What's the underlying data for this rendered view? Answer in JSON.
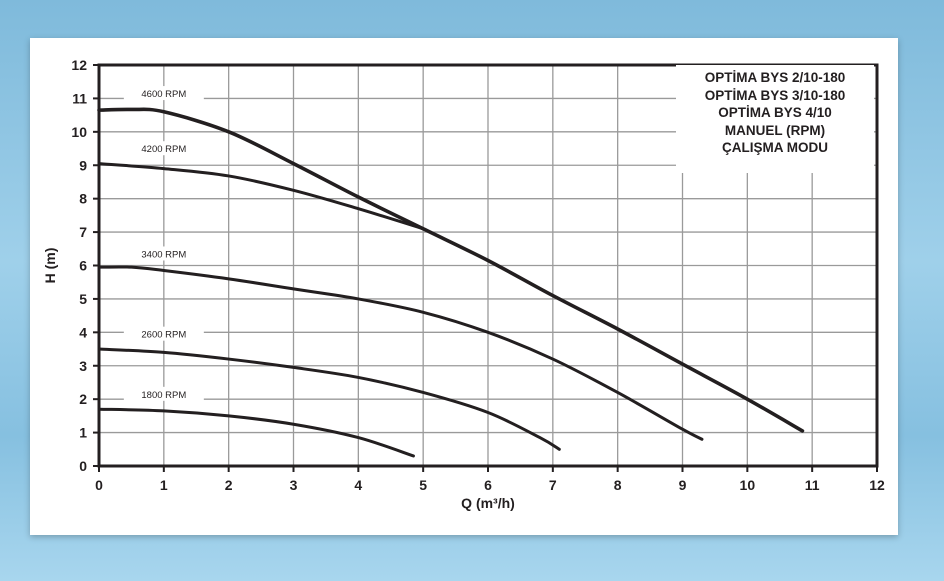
{
  "chart_data": {
    "type": "line",
    "title": "",
    "xlabel": "Q (m³/h)",
    "ylabel": "H (m)",
    "xlim": [
      0,
      12
    ],
    "ylim": [
      0,
      12
    ],
    "xticks": [
      "0",
      "1",
      "2",
      "3",
      "4",
      "5",
      "6",
      "7",
      "8",
      "9",
      "10",
      "11",
      "12"
    ],
    "yticks": [
      "0",
      "1",
      "2",
      "3",
      "4",
      "5",
      "6",
      "7",
      "8",
      "9",
      "10",
      "11",
      "12"
    ],
    "grid": true,
    "legend_box": [
      "OPTİMA BYS 2/10-180",
      "OPTİMA BYS 3/10-180",
      "OPTİMA BYS 4/10",
      "MANUEL (RPM)",
      "ÇALIŞMA MODU"
    ],
    "legend_placement": "top-right",
    "line_color": "#231f20",
    "series": [
      {
        "name": "4600  RPM",
        "x": [
          0,
          0.5,
          1,
          2,
          3,
          4,
          5,
          6,
          7,
          8,
          9,
          10,
          10.85
        ],
        "y": [
          10.65,
          10.67,
          10.6,
          10.0,
          9.05,
          8.05,
          7.1,
          6.15,
          5.1,
          4.1,
          3.05,
          2.0,
          1.05
        ]
      },
      {
        "name": "4200  RPM",
        "x": [
          0,
          1,
          2,
          3,
          4,
          5
        ],
        "y": [
          9.05,
          8.9,
          8.68,
          8.25,
          7.7,
          7.1
        ]
      },
      {
        "name": "3400  RPM",
        "x": [
          0,
          0.5,
          1,
          2,
          3,
          4,
          5,
          6,
          7,
          8,
          9,
          9.3
        ],
        "y": [
          5.95,
          5.95,
          5.85,
          5.6,
          5.3,
          5.0,
          4.6,
          4.0,
          3.2,
          2.2,
          1.1,
          0.8
        ]
      },
      {
        "name": "2600  RPM",
        "x": [
          0,
          1,
          2,
          3,
          4,
          5,
          6,
          6.8,
          7.1
        ],
        "y": [
          3.5,
          3.4,
          3.2,
          2.95,
          2.65,
          2.2,
          1.6,
          0.85,
          0.5
        ]
      },
      {
        "name": "1800  RPM",
        "x": [
          0,
          1,
          2,
          3,
          4,
          4.85
        ],
        "y": [
          1.7,
          1.65,
          1.5,
          1.25,
          0.85,
          0.3
        ]
      }
    ]
  }
}
